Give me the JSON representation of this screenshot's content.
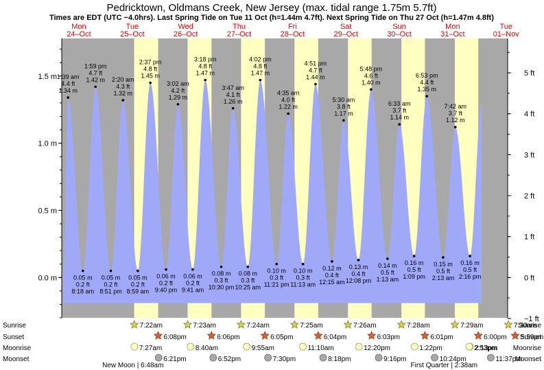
{
  "title": "Pedricktown, Oldmans Creek, New Jersey (max. tidal range 1.75m 5.7ft)",
  "subtitle": "Times are EDT (UTC −4.0hrs). Last Spring Tide on Tue 11 Oct (h=1.44m 4.7ft). Next Spring Tide on Thu 27 Oct (h=1.47m 4.8ft)",
  "colors": {
    "day": "#ffffc0",
    "night": "#a8a8a8",
    "tide": "#a0a8f8",
    "day_text": "#e00000"
  },
  "days": [
    {
      "name": "Mon",
      "date": "24–Oct"
    },
    {
      "name": "Tue",
      "date": "25–Oct"
    },
    {
      "name": "Wed",
      "date": "26–Oct"
    },
    {
      "name": "Thu",
      "date": "27–Oct"
    },
    {
      "name": "Fri",
      "date": "28–Oct"
    },
    {
      "name": "Sat",
      "date": "29–Oct"
    },
    {
      "name": "Sun",
      "date": "30–Oct"
    },
    {
      "name": "Mon",
      "date": "31–Oct"
    },
    {
      "name": "Tue",
      "date": "01–Nov"
    }
  ],
  "chart_data": {
    "type": "area",
    "title": "Pedricktown, Oldmans Creek, New Jersey (max. tidal range 1.75m 5.7ft)",
    "x_unit": "hours from Mon 24-Oct 00:00",
    "xlim": [
      -1.2,
      199.2
    ],
    "ylim": [
      -0.3,
      1.78
    ],
    "left_axis": {
      "unit": "m",
      "ticks": [
        0,
        0.5,
        1.0,
        1.5
      ],
      "labels": [
        "0.0 m",
        "0.5 m",
        "1.0 m",
        "1.5 m"
      ]
    },
    "right_axis": {
      "unit": "ft",
      "ticks": [
        -1,
        0,
        1,
        2,
        3,
        4,
        5
      ],
      "labels": [
        "−1 ft",
        "0 ft",
        "1 ft",
        "2 ft",
        "3 ft",
        "4 ft",
        "5 ft"
      ]
    },
    "daylight": [
      {
        "rise": 31.37,
        "set": 42.13
      },
      {
        "rise": 55.38,
        "set": 66.1
      },
      {
        "rise": 79.4,
        "set": 90.08
      },
      {
        "rise": 103.42,
        "set": 114.07
      },
      {
        "rise": 127.43,
        "set": 138.05
      },
      {
        "rise": 151.47,
        "set": 162.02
      },
      {
        "rise": 175.48,
        "set": 186.0
      },
      {
        "rise": 199.5,
        "set": 209.98
      }
    ],
    "tides": [
      {
        "type": "high",
        "x": 1.65,
        "m": 1.34,
        "time": "1:39 am",
        "ft": "4.4 ft",
        "height": "1.34 m"
      },
      {
        "type": "low",
        "x": 8.3,
        "m": 0.05,
        "time": "8:18 am",
        "ft": "0.2 ft",
        "height": "0.05 m"
      },
      {
        "type": "high",
        "x": 13.98,
        "m": 1.42,
        "time": "1:59 pm",
        "ft": "4.7 ft",
        "height": "1.42 m"
      },
      {
        "type": "low",
        "x": 20.85,
        "m": 0.05,
        "time": "8:51 pm",
        "ft": "0.2 ft",
        "height": "0.05 m"
      },
      {
        "type": "high",
        "x": 26.33,
        "m": 1.32,
        "time": "2:20 am",
        "ft": "4.3 ft",
        "height": "1.32 m"
      },
      {
        "type": "low",
        "x": 32.98,
        "m": 0.05,
        "time": "8:59 am",
        "ft": "0.2 ft",
        "height": "0.05 m"
      },
      {
        "type": "high",
        "x": 38.62,
        "m": 1.45,
        "time": "2:37 pm",
        "ft": "4.8 ft",
        "height": "1.45 m"
      },
      {
        "type": "low",
        "x": 45.67,
        "m": 0.06,
        "time": "9:40 pm",
        "ft": "0.2 ft",
        "height": "0.06 m"
      },
      {
        "type": "high",
        "x": 51.03,
        "m": 1.29,
        "time": "3:02 am",
        "ft": "4.2 ft",
        "height": "1.29 m"
      },
      {
        "type": "low",
        "x": 57.68,
        "m": 0.06,
        "time": "9:41 am",
        "ft": "0.2 ft",
        "height": "0.06 m"
      },
      {
        "type": "high",
        "x": 63.3,
        "m": 1.47,
        "time": "3:18 pm",
        "ft": "4.8 ft",
        "height": "1.47 m"
      },
      {
        "type": "low",
        "x": 70.5,
        "m": 0.08,
        "time": "10:30 pm",
        "ft": "0.3 ft",
        "height": "0.08 m"
      },
      {
        "type": "high",
        "x": 75.78,
        "m": 1.26,
        "time": "3:47 am",
        "ft": "4.1 ft",
        "height": "1.26 m"
      },
      {
        "type": "low",
        "x": 82.42,
        "m": 0.08,
        "time": "10:25 am",
        "ft": "0.3 ft",
        "height": "0.08 m"
      },
      {
        "type": "high",
        "x": 88.03,
        "m": 1.47,
        "time": "4:02 pm",
        "ft": "4.8 ft",
        "height": "1.47 m"
      },
      {
        "type": "low",
        "x": 95.35,
        "m": 0.1,
        "time": "11:21 pm",
        "ft": "0.3 ft",
        "height": "0.10 m"
      },
      {
        "type": "high",
        "x": 100.58,
        "m": 1.22,
        "time": "4:35 am",
        "ft": "4.0 ft",
        "height": "1.22 m"
      },
      {
        "type": "low",
        "x": 107.22,
        "m": 0.1,
        "time": "11:13 am",
        "ft": "0.3 ft",
        "height": "0.10 m"
      },
      {
        "type": "high",
        "x": 112.85,
        "m": 1.44,
        "time": "4:51 pm",
        "ft": "4.7 ft",
        "height": "1.44 m"
      },
      {
        "type": "low",
        "x": 120.25,
        "m": 0.12,
        "time": "12:15 am",
        "ft": "0.4 ft",
        "height": "0.12 m"
      },
      {
        "type": "high",
        "x": 125.5,
        "m": 1.17,
        "time": "5:30 am",
        "ft": "3.8 ft",
        "height": "1.17 m"
      },
      {
        "type": "low",
        "x": 132.13,
        "m": 0.13,
        "time": "12:08 pm",
        "ft": "0.4 ft",
        "height": "0.13 m"
      },
      {
        "type": "high",
        "x": 137.8,
        "m": 1.4,
        "time": "5:48 pm",
        "ft": "4.6 ft",
        "height": "1.40 m"
      },
      {
        "type": "low",
        "x": 145.22,
        "m": 0.14,
        "time": "1:13 am",
        "ft": "0.5 ft",
        "height": "0.14 m"
      },
      {
        "type": "high",
        "x": 150.55,
        "m": 1.14,
        "time": "6:33 am",
        "ft": "3.7 ft",
        "height": "1.14 m"
      },
      {
        "type": "low",
        "x": 157.15,
        "m": 0.16,
        "time": "1:09 pm",
        "ft": "0.5 ft",
        "height": "0.16 m"
      },
      {
        "type": "high",
        "x": 162.88,
        "m": 1.35,
        "time": "6:53 pm",
        "ft": "4.4 ft",
        "height": "1.35 m"
      },
      {
        "type": "low",
        "x": 170.22,
        "m": 0.15,
        "time": "2:13 am",
        "ft": "0.5 ft",
        "height": "0.15 m"
      },
      {
        "type": "high",
        "x": 175.7,
        "m": 1.12,
        "time": "7:42 am",
        "ft": "3.7 ft",
        "height": "1.12 m"
      },
      {
        "type": "low",
        "x": 182.27,
        "m": 0.16,
        "time": "2:16 pm",
        "ft": "0.5 ft",
        "height": "0.16 m"
      }
    ],
    "curve_start": {
      "x": -0.5,
      "m": 0.05
    },
    "curve_end": {
      "x": 187.5,
      "m": 1.3
    }
  },
  "astro": {
    "row_labels": {
      "sunrise": "Sunrise",
      "sunset": "Sunset",
      "moonrise": "Moonrise",
      "moonset": "Moonset"
    },
    "sunrise": [
      {
        "x": 31.37,
        "t": "7:22am"
      },
      {
        "x": 55.38,
        "t": "7:23am"
      },
      {
        "x": 79.4,
        "t": "7:24am"
      },
      {
        "x": 103.42,
        "t": "7:25am"
      },
      {
        "x": 127.43,
        "t": "7:26am"
      },
      {
        "x": 151.47,
        "t": "7:28am"
      },
      {
        "x": 175.48,
        "t": "7:29am"
      },
      {
        "x": 199.5,
        "t": "7:30am"
      }
    ],
    "sunset": [
      {
        "x": 42.13,
        "t": "6:08pm"
      },
      {
        "x": 66.1,
        "t": "6:06pm"
      },
      {
        "x": 90.08,
        "t": "6:05pm"
      },
      {
        "x": 114.07,
        "t": "6:04pm"
      },
      {
        "x": 138.05,
        "t": "6:03pm"
      },
      {
        "x": 162.02,
        "t": "6:01pm"
      },
      {
        "x": 186.0,
        "t": "6:00pm"
      },
      {
        "x": 209.98,
        "t": "5:59pm"
      }
    ],
    "moonrise": [
      {
        "x": 31.45,
        "t": "7:27am"
      },
      {
        "x": 56.67,
        "t": "8:40am"
      },
      {
        "x": 81.92,
        "t": "9:55am"
      },
      {
        "x": 107.17,
        "t": "11:10am"
      },
      {
        "x": 132.33,
        "t": "12:20pm"
      },
      {
        "x": 157.37,
        "t": "1:22pm"
      },
      {
        "x": 182.22,
        "t": "2:13pm"
      },
      {
        "x": 206.88,
        "t": "2:53pm"
      }
    ],
    "moonset": [
      {
        "x": 42.35,
        "t": "6:21pm"
      },
      {
        "x": 66.87,
        "t": "6:52pm"
      },
      {
        "x": 91.5,
        "t": "7:30pm"
      },
      {
        "x": 116.3,
        "t": "8:18pm"
      },
      {
        "x": 141.27,
        "t": "9:16pm"
      },
      {
        "x": 166.4,
        "t": "10:24pm"
      },
      {
        "x": 191.62,
        "t": "11:37pm"
      }
    ],
    "phases": [
      {
        "x": 30.8,
        "t": "New Moon | 6:48am"
      },
      {
        "x": 170.63,
        "t": "First Quarter | 2:38am"
      }
    ]
  }
}
